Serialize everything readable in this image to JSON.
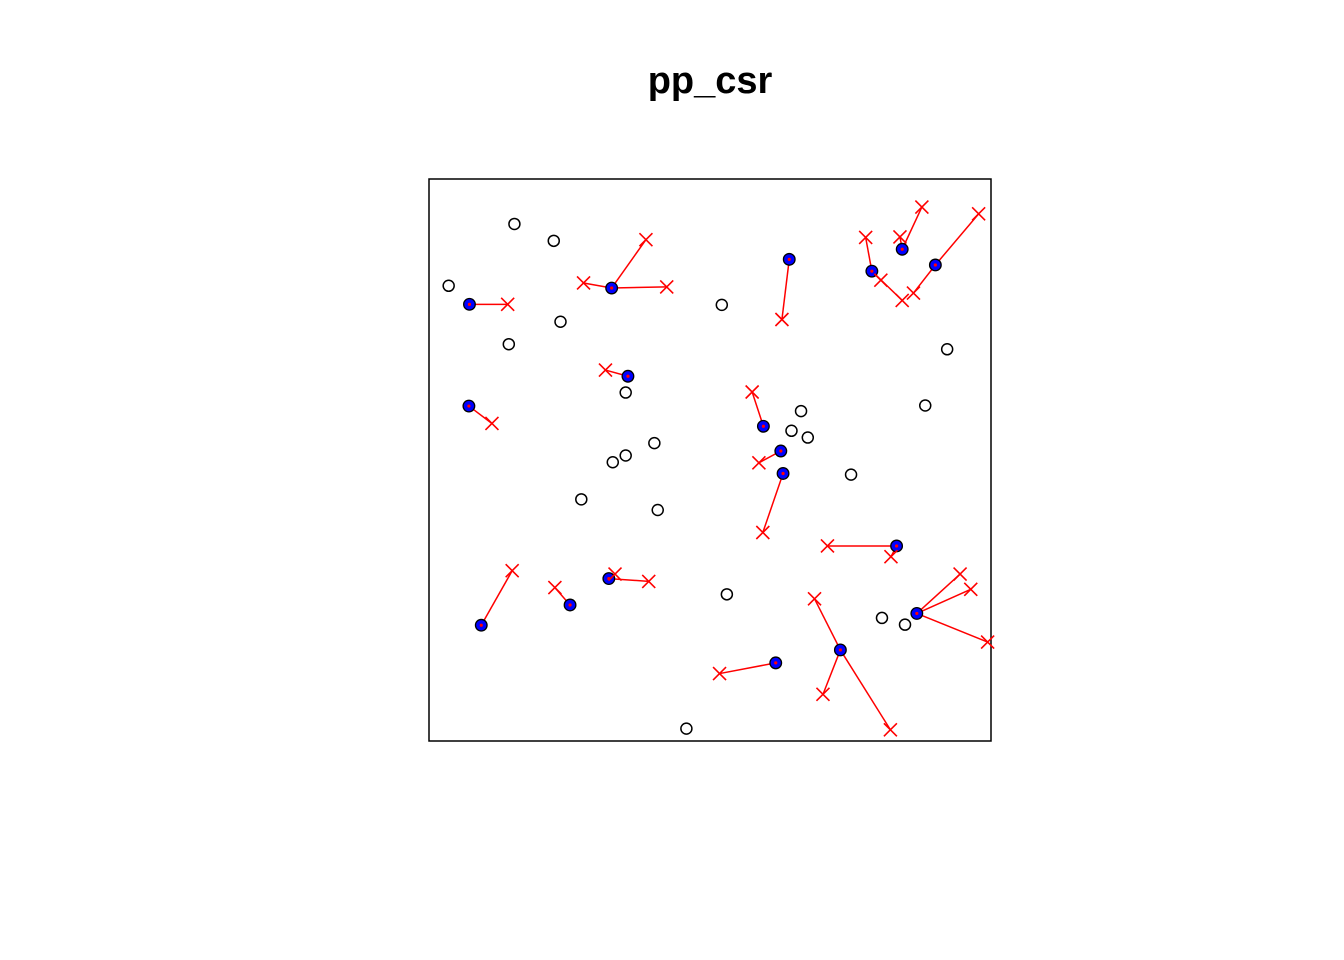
{
  "chart_data": {
    "type": "scatter",
    "title": "pp_csr",
    "xlabel": "",
    "ylabel": "",
    "xlim": [
      0,
      1
    ],
    "ylim": [
      0,
      1
    ],
    "axes_shown": false,
    "grid": false,
    "colors": {
      "frame": "#000000",
      "open_point": "#000000",
      "parent_fill": "#0000ff",
      "parent_inner": "#ff0000",
      "link": "#ff0000",
      "offspring": "#ff0000"
    },
    "open_points": [
      [
        0.152,
        0.92
      ],
      [
        0.222,
        0.89
      ],
      [
        0.035,
        0.81
      ],
      [
        0.521,
        0.776
      ],
      [
        0.234,
        0.746
      ],
      [
        0.142,
        0.706
      ],
      [
        0.922,
        0.697
      ],
      [
        0.35,
        0.62
      ],
      [
        0.883,
        0.597
      ],
      [
        0.662,
        0.587
      ],
      [
        0.645,
        0.552
      ],
      [
        0.674,
        0.54
      ],
      [
        0.401,
        0.53
      ],
      [
        0.35,
        0.508
      ],
      [
        0.327,
        0.496
      ],
      [
        0.751,
        0.474
      ],
      [
        0.271,
        0.43
      ],
      [
        0.407,
        0.411
      ],
      [
        0.53,
        0.261
      ],
      [
        0.806,
        0.219
      ],
      [
        0.847,
        0.207
      ],
      [
        0.458,
        0.022
      ]
    ],
    "clusters": [
      {
        "parent": [
          0.072,
          0.777
        ],
        "offspring": [
          [
            0.14,
            0.777
          ]
        ]
      },
      {
        "parent": [
          0.325,
          0.806
        ],
        "offspring": [
          [
            0.386,
            0.892
          ],
          [
            0.275,
            0.815
          ],
          [
            0.423,
            0.808
          ]
        ]
      },
      {
        "parent": [
          0.641,
          0.857
        ],
        "offspring": [
          [
            0.628,
            0.75
          ]
        ]
      },
      {
        "parent": [
          0.788,
          0.836
        ],
        "offspring": [
          [
            0.777,
            0.896
          ],
          [
            0.804,
            0.82
          ],
          [
            0.842,
            0.784
          ]
        ]
      },
      {
        "parent": [
          0.842,
          0.875
        ],
        "offspring": [
          [
            0.877,
            0.95
          ],
          [
            0.838,
            0.897
          ]
        ]
      },
      {
        "parent": [
          0.901,
          0.847
        ],
        "offspring": [
          [
            0.978,
            0.938
          ],
          [
            0.862,
            0.797
          ]
        ]
      },
      {
        "parent": [
          0.354,
          0.649
        ],
        "offspring": [
          [
            0.314,
            0.66
          ]
        ]
      },
      {
        "parent": [
          0.071,
          0.596
        ],
        "offspring": [
          [
            0.112,
            0.565
          ]
        ]
      },
      {
        "parent": [
          0.595,
          0.56
        ],
        "offspring": [
          [
            0.575,
            0.621
          ]
        ]
      },
      {
        "parent": [
          0.626,
          0.516
        ],
        "offspring": [
          [
            0.587,
            0.495
          ]
        ]
      },
      {
        "parent": [
          0.63,
          0.476
        ],
        "offspring": [
          [
            0.594,
            0.371
          ]
        ]
      },
      {
        "parent": [
          0.832,
          0.347
        ],
        "offspring": [
          [
            0.709,
            0.347
          ],
          [
            0.822,
            0.328
          ]
        ]
      },
      {
        "parent": [
          0.32,
          0.289
        ],
        "offspring": [
          [
            0.331,
            0.297
          ],
          [
            0.391,
            0.284
          ]
        ]
      },
      {
        "parent": [
          0.251,
          0.242
        ],
        "offspring": [
          [
            0.224,
            0.273
          ]
        ]
      },
      {
        "parent": [
          0.093,
          0.206
        ],
        "offspring": [
          [
            0.148,
            0.303
          ]
        ]
      },
      {
        "parent": [
          0.868,
          0.227
        ],
        "offspring": [
          [
            0.945,
            0.297
          ],
          [
            0.964,
            0.27
          ],
          [
            0.994,
            0.176
          ]
        ]
      },
      {
        "parent": [
          0.732,
          0.162
        ],
        "offspring": [
          [
            0.686,
            0.253
          ],
          [
            0.701,
            0.083
          ],
          [
            0.821,
            0.02
          ]
        ]
      },
      {
        "parent": [
          0.617,
          0.139
        ],
        "offspring": [
          [
            0.517,
            0.12
          ]
        ]
      }
    ]
  }
}
